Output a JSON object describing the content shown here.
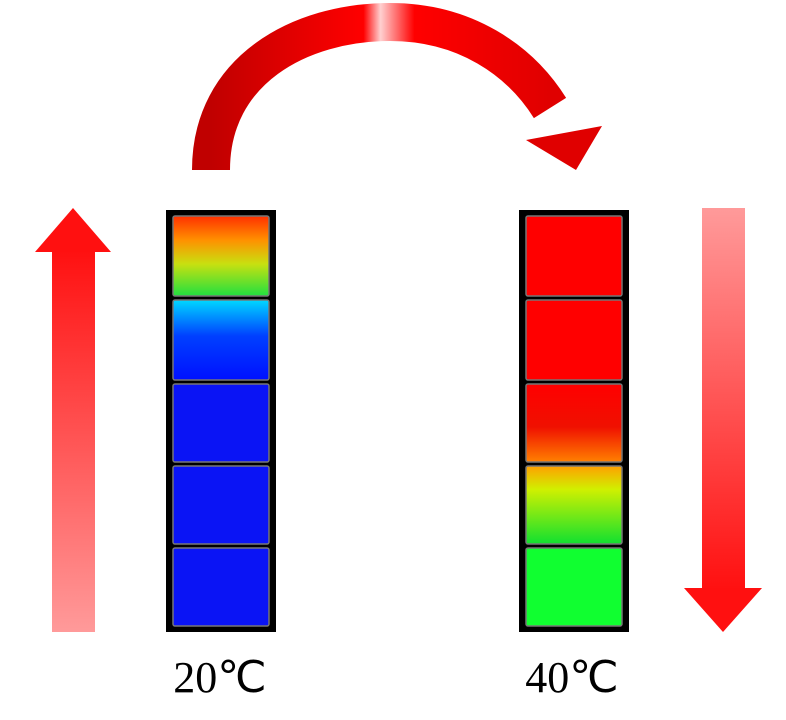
{
  "labels": {
    "left": "20℃",
    "right": "40℃"
  }
}
